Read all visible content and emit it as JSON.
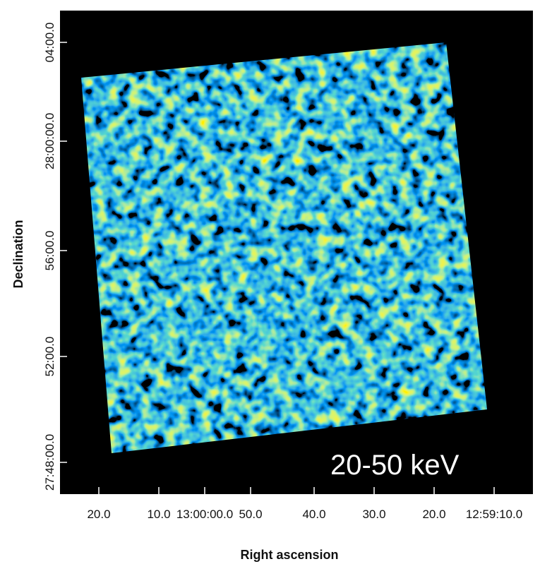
{
  "figure": {
    "annotation": "20-50 keV",
    "x_axis": {
      "label": "Right ascension",
      "ticks": [
        "20.0",
        "10.0",
        "13:00:00.0",
        "50.0",
        "40.0",
        "30.0",
        "20.0",
        "12:59:10.0"
      ]
    },
    "y_axis": {
      "label": "Declination",
      "ticks": [
        "04:00.0",
        "28:00:00.0",
        "56:00.0",
        "52:00.0",
        "27:48:00.0"
      ]
    }
  }
}
